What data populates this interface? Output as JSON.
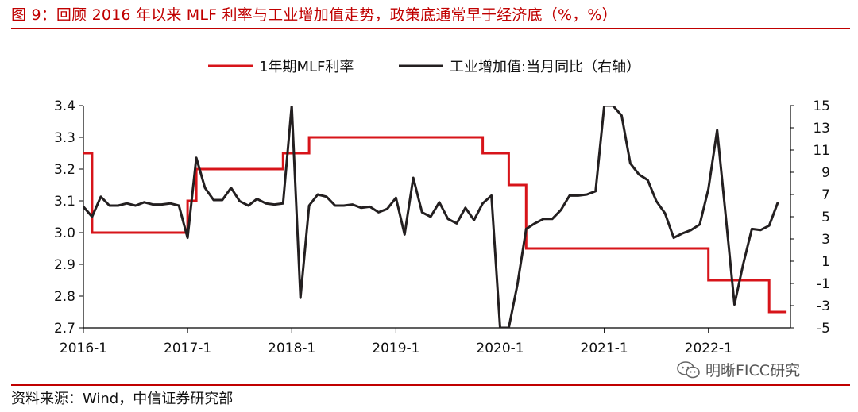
{
  "figure": {
    "title": "图 9：回顾 2016 年以来 MLF 利率与工业增加值走势，政策底通常早于经济底（%，%）",
    "source": "资料来源：Wind，中信证券研究部",
    "watermark": "明晰FICC研究",
    "watermark_icon": "wechat-icon"
  },
  "colors": {
    "accent": "#c00000",
    "mlf": "#d7141a",
    "ip": "#231f20",
    "axis": "#000000"
  },
  "chart_data": {
    "type": "line",
    "title": "",
    "x_unit": "month",
    "x_start": "2016-01",
    "x_end": "2022-10",
    "x_tick_labels": [
      "2016-1",
      "2017-1",
      "2018-1",
      "2019-1",
      "2020-1",
      "2021-1",
      "2022-1"
    ],
    "y_left": {
      "label": "",
      "range": [
        2.7,
        3.4
      ],
      "ticks": [
        "2.7",
        "2.8",
        "2.9",
        "3.0",
        "3.1",
        "3.2",
        "3.3",
        "3.4"
      ]
    },
    "y_right": {
      "label": "",
      "range": [
        -5,
        15
      ],
      "ticks": [
        "-5",
        "-3",
        "-1",
        "1",
        "3",
        "5",
        "7",
        "9",
        "11",
        "13",
        "15"
      ]
    },
    "grid": false,
    "legend_position": "top",
    "series": [
      {
        "name": "1年期MLF利率",
        "axis": "left",
        "step": true,
        "points": [
          [
            "2016-01",
            3.25
          ],
          [
            "2016-02",
            3.0
          ],
          [
            "2017-01",
            3.1
          ],
          [
            "2017-02",
            3.2
          ],
          [
            "2017-12",
            3.25
          ],
          [
            "2018-03",
            3.3
          ],
          [
            "2019-11",
            3.25
          ],
          [
            "2020-02",
            3.15
          ],
          [
            "2020-04",
            2.95
          ],
          [
            "2022-01",
            2.85
          ],
          [
            "2022-08",
            2.75
          ],
          [
            "2022-10",
            2.75
          ]
        ]
      },
      {
        "name": "工业增加值:当月同比（右轴）",
        "axis": "right",
        "step": false,
        "points": [
          [
            "2016-01",
            5.9
          ],
          [
            "2016-02",
            5.0
          ],
          [
            "2016-03",
            6.8
          ],
          [
            "2016-04",
            6.0
          ],
          [
            "2016-05",
            6.0
          ],
          [
            "2016-06",
            6.2
          ],
          [
            "2016-07",
            6.0
          ],
          [
            "2016-08",
            6.3
          ],
          [
            "2016-09",
            6.1
          ],
          [
            "2016-10",
            6.1
          ],
          [
            "2016-11",
            6.2
          ],
          [
            "2016-12",
            6.0
          ],
          [
            "2017-01",
            3.1
          ],
          [
            "2017-02",
            10.3
          ],
          [
            "2017-03",
            7.6
          ],
          [
            "2017-04",
            6.5
          ],
          [
            "2017-05",
            6.5
          ],
          [
            "2017-06",
            7.6
          ],
          [
            "2017-07",
            6.4
          ],
          [
            "2017-08",
            6.0
          ],
          [
            "2017-09",
            6.6
          ],
          [
            "2017-10",
            6.2
          ],
          [
            "2017-11",
            6.1
          ],
          [
            "2017-12",
            6.2
          ],
          [
            "2018-01",
            15.0
          ],
          [
            "2018-02",
            -2.3
          ],
          [
            "2018-03",
            6.0
          ],
          [
            "2018-04",
            7.0
          ],
          [
            "2018-05",
            6.8
          ],
          [
            "2018-06",
            6.0
          ],
          [
            "2018-07",
            6.0
          ],
          [
            "2018-08",
            6.1
          ],
          [
            "2018-09",
            5.8
          ],
          [
            "2018-10",
            5.9
          ],
          [
            "2018-11",
            5.4
          ],
          [
            "2018-12",
            5.7
          ],
          [
            "2019-01",
            6.7
          ],
          [
            "2019-02",
            3.4
          ],
          [
            "2019-03",
            8.5
          ],
          [
            "2019-04",
            5.4
          ],
          [
            "2019-05",
            5.0
          ],
          [
            "2019-06",
            6.3
          ],
          [
            "2019-07",
            4.8
          ],
          [
            "2019-08",
            4.4
          ],
          [
            "2019-09",
            5.8
          ],
          [
            "2019-10",
            4.7
          ],
          [
            "2019-11",
            6.2
          ],
          [
            "2019-12",
            6.9
          ],
          [
            "2020-01",
            -5.0
          ],
          [
            "2020-02",
            -5.0
          ],
          [
            "2020-03",
            -1.1
          ],
          [
            "2020-04",
            3.9
          ],
          [
            "2020-05",
            4.4
          ],
          [
            "2020-06",
            4.8
          ],
          [
            "2020-07",
            4.8
          ],
          [
            "2020-08",
            5.6
          ],
          [
            "2020-09",
            6.9
          ],
          [
            "2020-10",
            6.9
          ],
          [
            "2020-11",
            7.0
          ],
          [
            "2020-12",
            7.3
          ],
          [
            "2021-01",
            15.0
          ],
          [
            "2021-02",
            15.0
          ],
          [
            "2021-03",
            14.1
          ],
          [
            "2021-04",
            9.8
          ],
          [
            "2021-05",
            8.8
          ],
          [
            "2021-06",
            8.3
          ],
          [
            "2021-07",
            6.4
          ],
          [
            "2021-08",
            5.3
          ],
          [
            "2021-09",
            3.1
          ],
          [
            "2021-10",
            3.5
          ],
          [
            "2021-11",
            3.8
          ],
          [
            "2021-12",
            4.3
          ],
          [
            "2022-01",
            7.5
          ],
          [
            "2022-02",
            12.8
          ],
          [
            "2022-03",
            5.0
          ],
          [
            "2022-04",
            -2.9
          ],
          [
            "2022-05",
            0.7
          ],
          [
            "2022-06",
            3.9
          ],
          [
            "2022-07",
            3.8
          ],
          [
            "2022-08",
            4.2
          ],
          [
            "2022-09",
            6.3
          ]
        ]
      }
    ]
  }
}
